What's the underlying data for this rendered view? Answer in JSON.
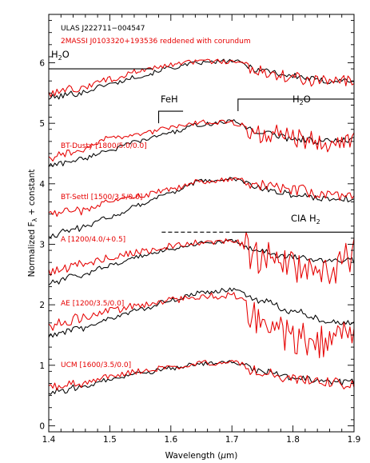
{
  "colors": {
    "observed": "#000000",
    "model": "#e60000",
    "axis": "#000000"
  },
  "chart_data": {
    "type": "line",
    "xlabel": "Wavelength (μm)",
    "xlabel_parts": {
      "text": "Wavelength (",
      "mu": "μ",
      "unit": "m)"
    },
    "ylabel_parts": {
      "pre": "Normalized F",
      "sub": "λ",
      "post": " + constant"
    },
    "xlim": [
      1.4,
      1.9
    ],
    "ylim": [
      -0.1,
      6.8
    ],
    "x_ticks": [
      1.4,
      1.5,
      1.6,
      1.7,
      1.8,
      1.9
    ],
    "x_tick_labels": [
      "1.4",
      "1.5",
      "1.6",
      "1.7",
      "1.8",
      "1.9"
    ],
    "y_ticks": [
      0,
      1,
      2,
      3,
      4,
      5,
      6
    ],
    "y_tick_labels": [
      "0",
      "1",
      "2",
      "3",
      "4",
      "5",
      "6"
    ],
    "object_label": "ULAS J222711−004547",
    "comparison_label": "2MASSI J0103320+193536 reddened with corundum",
    "series": [
      {
        "name": "2MASSI J0103320+193536 reddened with corundum",
        "offset": 5,
        "observed": {
          "x": [
            1.4,
            1.45,
            1.5,
            1.55,
            1.6,
            1.65,
            1.7,
            1.75,
            1.8,
            1.85,
            1.9
          ],
          "y": [
            0.42,
            0.5,
            0.65,
            0.78,
            0.92,
            1.0,
            1.03,
            0.88,
            0.78,
            0.7,
            0.71
          ]
        },
        "model": {
          "x": [
            1.4,
            1.45,
            1.5,
            1.55,
            1.6,
            1.65,
            1.7,
            1.75,
            1.8,
            1.85,
            1.9
          ],
          "y": [
            0.5,
            0.58,
            0.73,
            0.87,
            0.96,
            1.02,
            1.02,
            0.86,
            0.75,
            0.69,
            0.71
          ]
        }
      },
      {
        "name": "BT-Dusty [1800/5.0/0.0]",
        "offset": 3.8,
        "observed": {
          "x": [
            1.4,
            1.45,
            1.5,
            1.55,
            1.6,
            1.65,
            1.7,
            1.75,
            1.8,
            1.85,
            1.9
          ],
          "y": [
            0.5,
            0.6,
            0.76,
            0.91,
            1.05,
            1.18,
            1.23,
            1.04,
            0.95,
            0.9,
            0.92
          ]
        },
        "model": {
          "x": [
            1.4,
            1.45,
            1.5,
            1.55,
            1.6,
            1.65,
            1.7,
            1.75,
            1.8,
            1.85,
            1.9
          ],
          "y": [
            0.63,
            0.75,
            0.95,
            1.02,
            1.12,
            1.21,
            1.21,
            1.05,
            0.98,
            0.9,
            0.93
          ]
        }
      },
      {
        "name": "BT-Settl [1500/3.5/0.0]",
        "offset": 2.8,
        "observed": {
          "x": [
            1.4,
            1.45,
            1.5,
            1.55,
            1.6,
            1.65,
            1.7,
            1.75,
            1.8,
            1.85,
            1.9
          ],
          "y": [
            0.35,
            0.46,
            0.65,
            0.86,
            1.06,
            1.24,
            1.28,
            1.12,
            1.02,
            0.96,
            0.95
          ]
        },
        "model": {
          "x": [
            1.4,
            1.45,
            1.5,
            1.55,
            1.6,
            1.65,
            1.7,
            1.75,
            1.8,
            1.85,
            1.9
          ],
          "y": [
            0.7,
            0.75,
            0.9,
            1.0,
            1.11,
            1.24,
            1.28,
            1.18,
            1.1,
            1.03,
            1.02
          ]
        }
      },
      {
        "name": "A [1200/4.0/+0.5]",
        "offset": 1.8,
        "observed": {
          "x": [
            1.4,
            1.45,
            1.5,
            1.55,
            1.6,
            1.65,
            1.7,
            1.75,
            1.8,
            1.85,
            1.9
          ],
          "y": [
            0.55,
            0.68,
            0.85,
            1.0,
            1.13,
            1.22,
            1.25,
            1.07,
            0.98,
            0.94,
            0.93
          ]
        },
        "model": {
          "x": [
            1.4,
            1.45,
            1.5,
            1.55,
            1.6,
            1.65,
            1.7,
            1.75,
            1.8,
            1.85,
            1.9
          ],
          "y": [
            0.75,
            0.85,
            0.98,
            1.08,
            1.16,
            1.22,
            1.25,
            1.0,
            0.82,
            0.7,
            0.98
          ]
        }
      },
      {
        "name": "AE [1200/3.5/0.0]",
        "offset": 1.2,
        "observed": {
          "x": [
            1.4,
            1.45,
            1.5,
            1.55,
            1.6,
            1.65,
            1.7,
            1.75,
            1.8,
            1.85,
            1.9
          ],
          "y": [
            0.28,
            0.4,
            0.57,
            0.72,
            0.88,
            1.0,
            1.05,
            0.85,
            0.7,
            0.55,
            0.5
          ]
        },
        "model": {
          "x": [
            1.4,
            1.45,
            1.5,
            1.55,
            1.6,
            1.65,
            1.7,
            1.75,
            1.8,
            1.85,
            1.9
          ],
          "y": [
            0.45,
            0.56,
            0.7,
            0.8,
            0.88,
            0.95,
            0.95,
            0.6,
            0.2,
            0.2,
            0.35
          ]
        }
      },
      {
        "name": "UCM [1600/3.5/0.0]",
        "offset": 0,
        "observed": {
          "x": [
            1.4,
            1.45,
            1.5,
            1.55,
            1.6,
            1.65,
            1.7,
            1.75,
            1.8,
            1.85,
            1.9
          ],
          "y": [
            0.55,
            0.63,
            0.76,
            0.86,
            0.95,
            1.03,
            1.05,
            0.9,
            0.8,
            0.72,
            0.72
          ]
        },
        "model": {
          "x": [
            1.4,
            1.45,
            1.5,
            1.55,
            1.6,
            1.65,
            1.7,
            1.75,
            1.8,
            1.85,
            1.9
          ],
          "y": [
            0.63,
            0.7,
            0.82,
            0.9,
            0.97,
            1.04,
            1.05,
            0.88,
            0.76,
            0.7,
            0.7
          ]
        }
      }
    ],
    "annotations": {
      "h2o_left": {
        "main": "H",
        "sub": "2",
        "post": "O",
        "x_range": [
          1.4,
          1.57
        ],
        "y": 5.9
      },
      "feh": {
        "text": "FeH",
        "x": 1.58,
        "y_top": 5.2,
        "y_bottom": 5.0,
        "x_end": 1.62
      },
      "h2o_right": {
        "main": "H",
        "sub": "2",
        "post": "O",
        "x_range": [
          1.71,
          1.9
        ],
        "y": 5.4,
        "y_bottom": 5.2
      },
      "cia_h2": {
        "main": "CIA H",
        "sub": "2",
        "dash_range": [
          1.585,
          1.705
        ],
        "solid_range": [
          1.705,
          1.9
        ],
        "y": 3.2
      }
    }
  }
}
